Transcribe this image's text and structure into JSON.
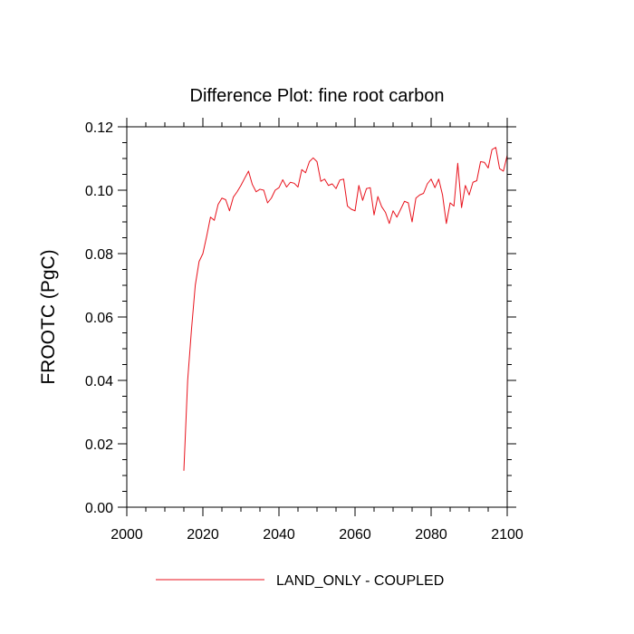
{
  "chart_data": {
    "type": "line",
    "title": "Difference Plot: fine root carbon",
    "xlabel": "",
    "ylabel": "FROOTC  (PgC)",
    "xlim": [
      2000,
      2100
    ],
    "ylim": [
      0.0,
      0.12
    ],
    "x_ticks": [
      2000,
      2020,
      2040,
      2060,
      2080,
      2100
    ],
    "x_tick_labels": [
      "2000",
      "2020",
      "2040",
      "2060",
      "2080",
      "2100"
    ],
    "y_ticks": [
      0.0,
      0.02,
      0.04,
      0.06,
      0.08,
      0.1,
      0.12
    ],
    "y_tick_labels": [
      "0.00",
      "0.02",
      "0.04",
      "0.06",
      "0.08",
      "0.10",
      "0.12"
    ],
    "legend_position": "bottom-center",
    "grid": false,
    "series": [
      {
        "name": "LAND_ONLY - COUPLED",
        "color": "#e8121c",
        "x": [
          2015,
          2016,
          2017,
          2018,
          2019,
          2020,
          2021,
          2022,
          2023,
          2024,
          2025,
          2026,
          2027,
          2028,
          2029,
          2030,
          2031,
          2032,
          2033,
          2034,
          2035,
          2036,
          2037,
          2038,
          2039,
          2040,
          2041,
          2042,
          2043,
          2044,
          2045,
          2046,
          2047,
          2048,
          2049,
          2050,
          2051,
          2052,
          2053,
          2054,
          2055,
          2056,
          2057,
          2058,
          2059,
          2060,
          2061,
          2062,
          2063,
          2064,
          2065,
          2066,
          2067,
          2068,
          2069,
          2070,
          2071,
          2072,
          2073,
          2074,
          2075,
          2076,
          2077,
          2078,
          2079,
          2080,
          2081,
          2082,
          2083,
          2084,
          2085,
          2086,
          2087,
          2088,
          2089,
          2090,
          2091,
          2092,
          2093,
          2094,
          2095,
          2096,
          2097,
          2098,
          2099,
          2100
        ],
        "y": [
          0.0115,
          0.04,
          0.056,
          0.07,
          0.0775,
          0.08,
          0.0855,
          0.0915,
          0.0905,
          0.0955,
          0.0975,
          0.097,
          0.0935,
          0.0978,
          0.0995,
          0.1015,
          0.1038,
          0.106,
          0.1018,
          0.0995,
          0.1003,
          0.1,
          0.096,
          0.0975,
          0.1,
          0.1008,
          0.1033,
          0.101,
          0.1025,
          0.1022,
          0.101,
          0.1065,
          0.1055,
          0.109,
          0.1102,
          0.109,
          0.1028,
          0.1035,
          0.1015,
          0.102,
          0.1005,
          0.1032,
          0.1035,
          0.095,
          0.094,
          0.0935,
          0.1015,
          0.0968,
          0.1005,
          0.1008,
          0.0922,
          0.098,
          0.0948,
          0.093,
          0.0895,
          0.0935,
          0.0915,
          0.094,
          0.0965,
          0.096,
          0.09,
          0.0975,
          0.0985,
          0.099,
          0.102,
          0.1035,
          0.1008,
          0.1035,
          0.0985,
          0.0895,
          0.096,
          0.095,
          0.1085,
          0.0945,
          0.1015,
          0.0985,
          0.1025,
          0.103,
          0.109,
          0.1088,
          0.107,
          0.1128,
          0.1135,
          0.1068,
          0.106,
          0.111
        ]
      }
    ]
  }
}
